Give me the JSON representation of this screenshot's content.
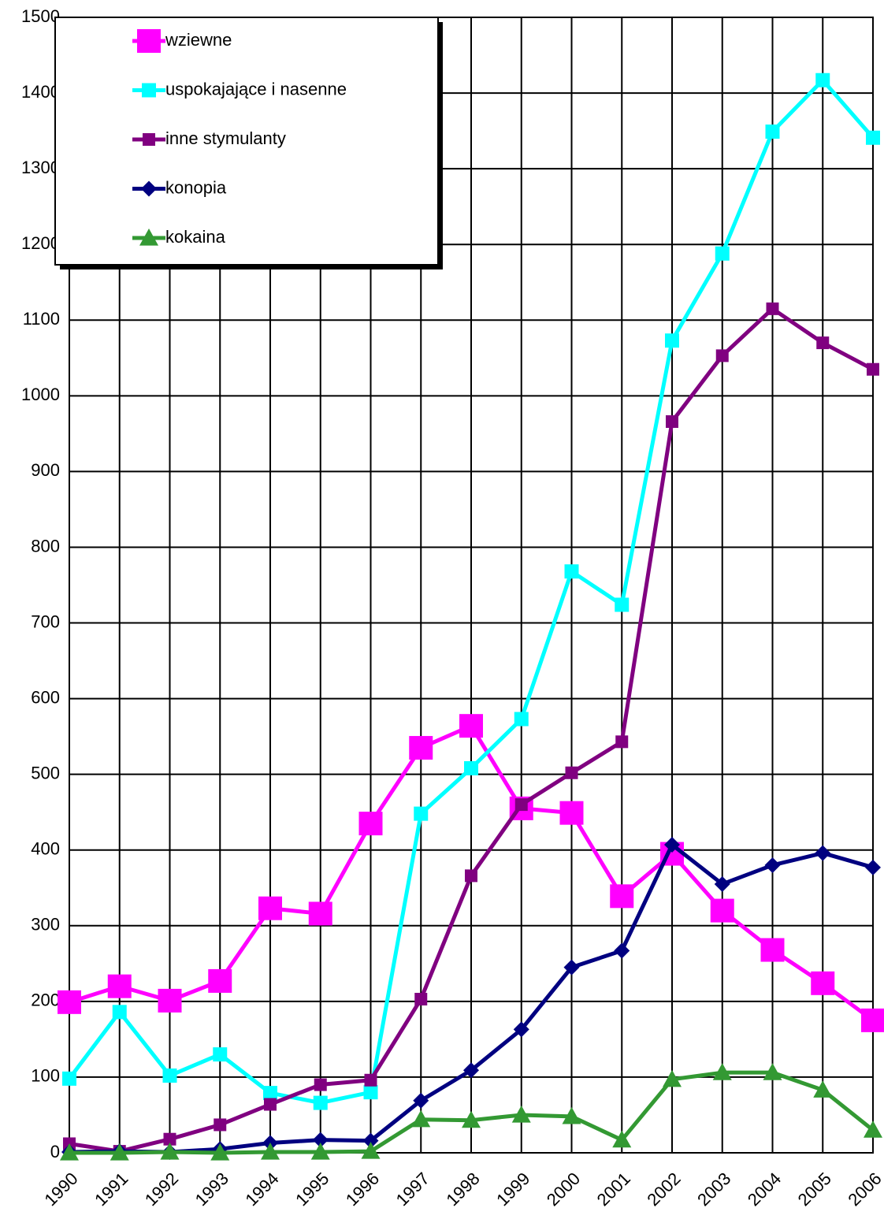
{
  "chart_data": {
    "type": "line",
    "categories": [
      "1990",
      "1991",
      "1992",
      "1993",
      "1994",
      "1995",
      "1996",
      "1997",
      "1998",
      "1999",
      "2000",
      "2001",
      "2002",
      "2003",
      "2004",
      "2005",
      "2006"
    ],
    "series": [
      {
        "name": "wziewne",
        "color": "#ff00ff",
        "marker": "square",
        "values": [
          199,
          220,
          201,
          227,
          323,
          316,
          435,
          535,
          564,
          455,
          449,
          339,
          395,
          320,
          268,
          224,
          175
        ]
      },
      {
        "name": "uspokajające i nasenne",
        "color": "#00ffff",
        "marker": "square",
        "values": [
          98,
          186,
          102,
          130,
          79,
          66,
          80,
          448,
          508,
          573,
          768,
          724,
          1073,
          1188,
          1349,
          1417,
          1341
        ]
      },
      {
        "name": "inne stymulanty",
        "color": "#800080",
        "marker": "square",
        "values": [
          12,
          2,
          18,
          37,
          64,
          90,
          96,
          203,
          366,
          460,
          502,
          543,
          966,
          1053,
          1115,
          1070,
          1035
        ]
      },
      {
        "name": "konopia",
        "color": "#000080",
        "marker": "diamond",
        "values": [
          1,
          2,
          1,
          5,
          13,
          17,
          16,
          69,
          109,
          163,
          245,
          267,
          407,
          355,
          380,
          396,
          377
        ]
      },
      {
        "name": "kokaina",
        "color": "#339933",
        "marker": "triangle",
        "values": [
          0,
          0,
          1,
          0,
          1,
          1,
          2,
          44,
          43,
          50,
          48,
          17,
          97,
          106,
          106,
          83,
          30
        ]
      }
    ],
    "ylim": [
      0,
      1500
    ],
    "yticks": [
      0,
      100,
      200,
      300,
      400,
      500,
      600,
      700,
      800,
      900,
      1000,
      1100,
      1200,
      1300,
      1400,
      1500
    ],
    "grid": true,
    "legend": "upper left"
  }
}
